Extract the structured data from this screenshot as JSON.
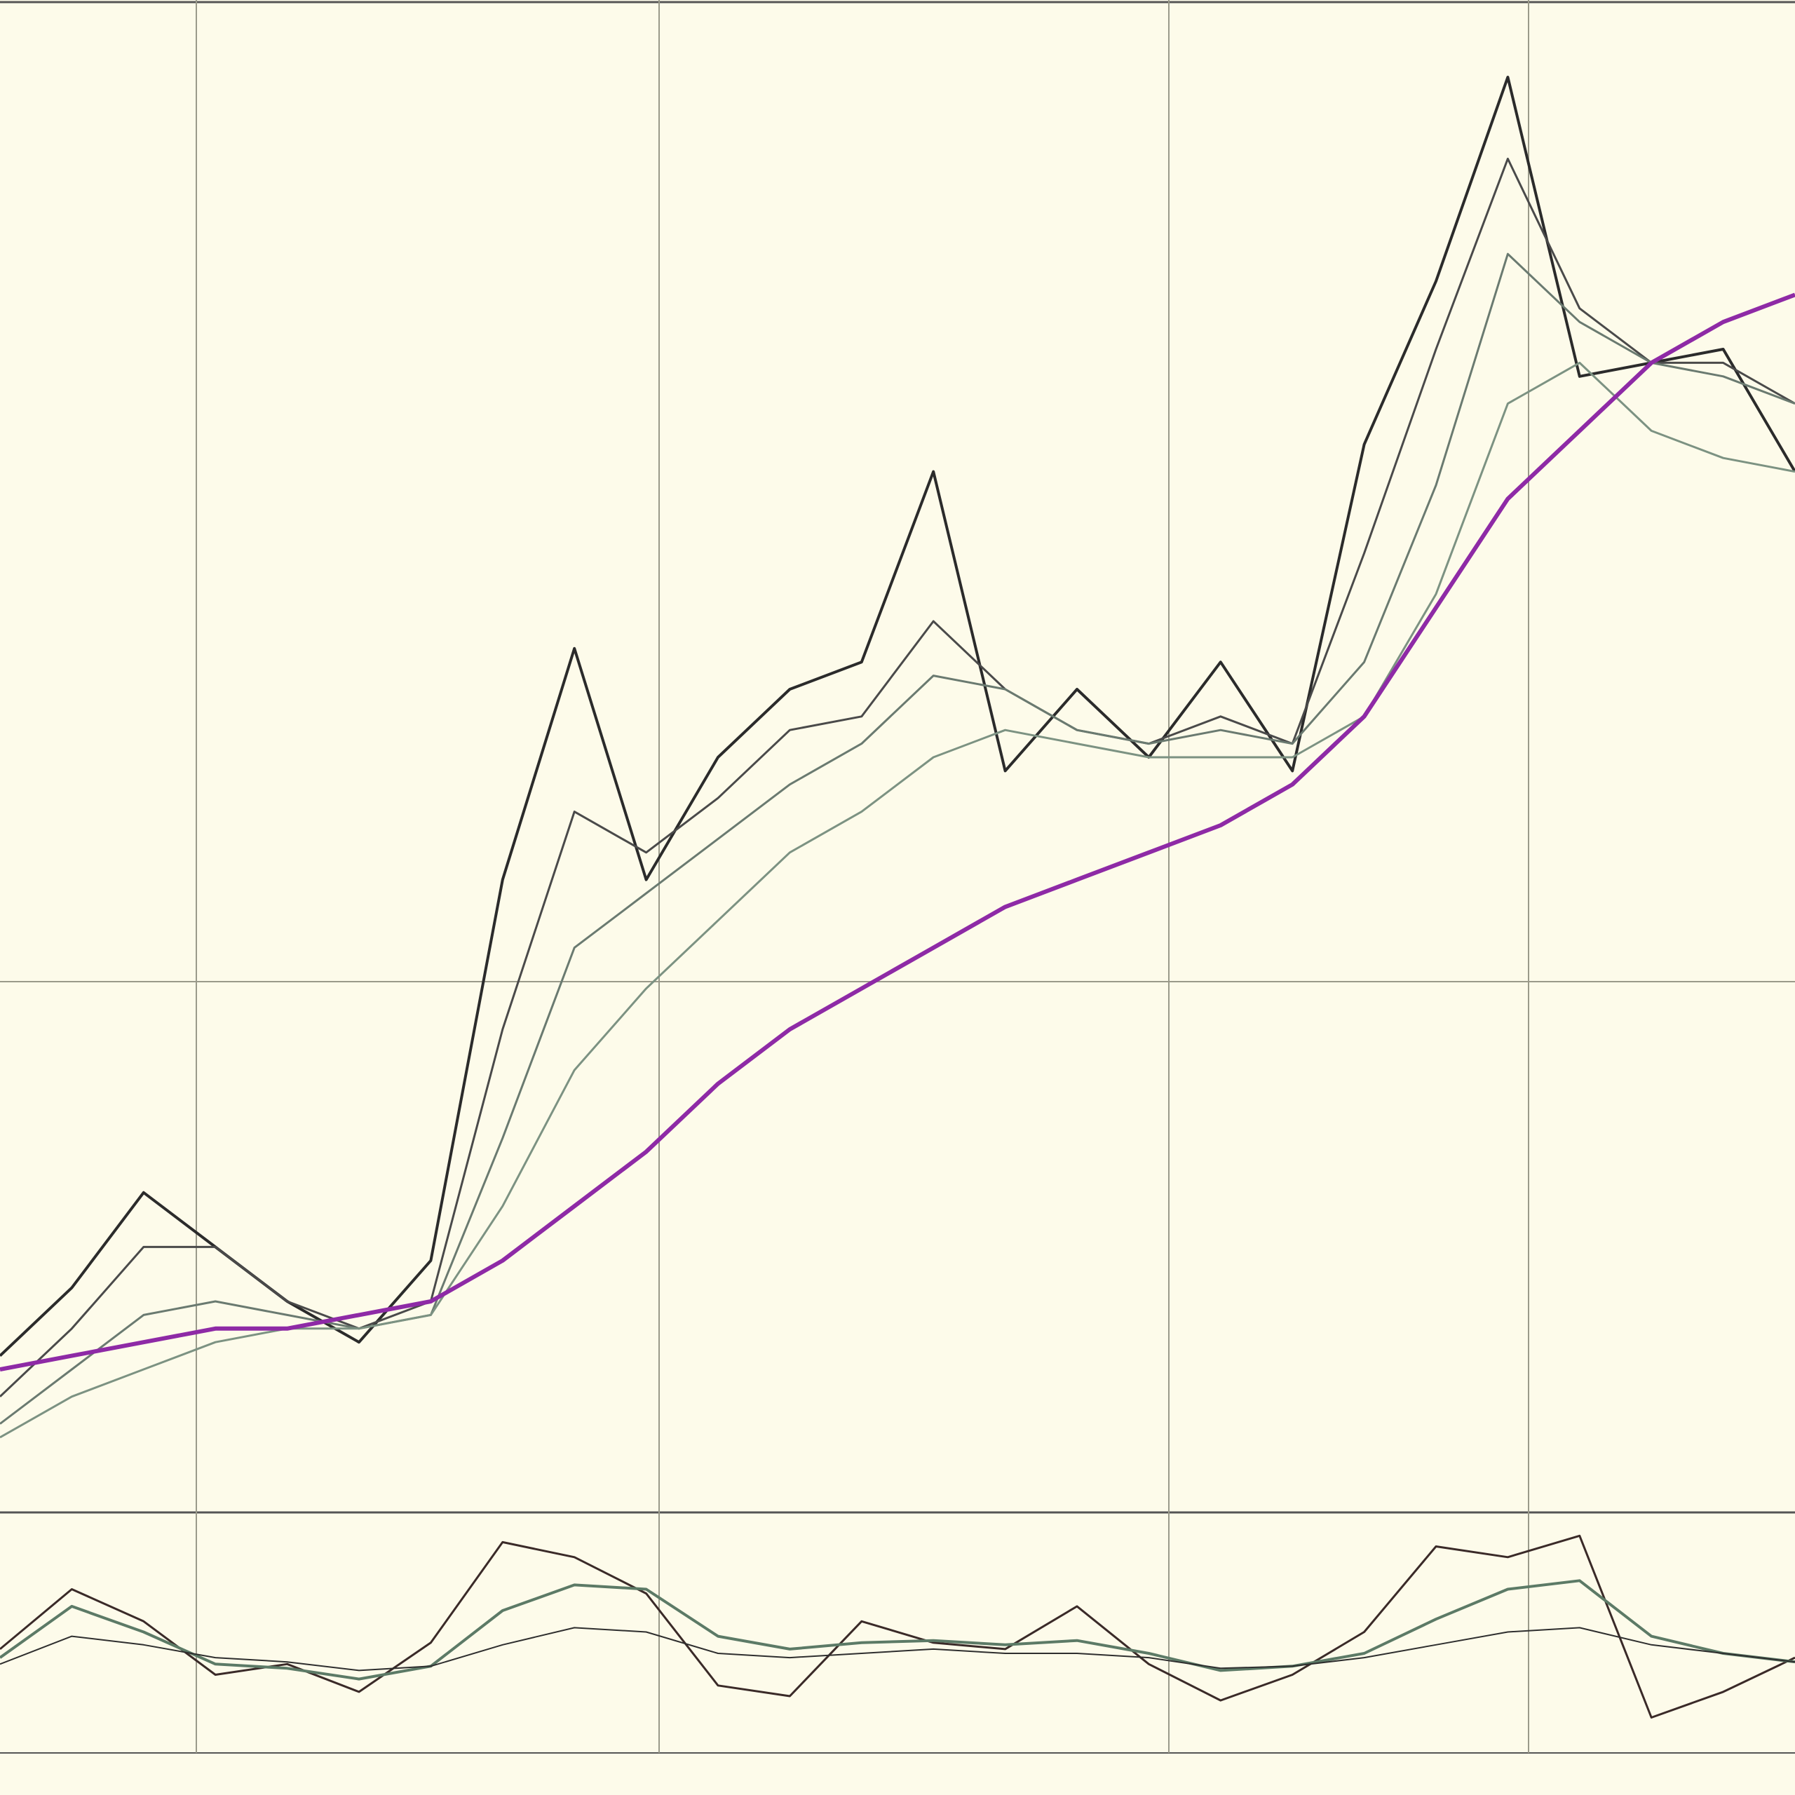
{
  "chart_data": {
    "type": "line",
    "title": "",
    "price_panel": {
      "header_label": "",
      "x": [
        0,
        4,
        8,
        12,
        16,
        20,
        24,
        28,
        32,
        36,
        40,
        44,
        48,
        52,
        56,
        60,
        64,
        68,
        72,
        76,
        80,
        84,
        88,
        92,
        96,
        100
      ],
      "series": [
        {
          "key": "price",
          "color": "#2b2b2b",
          "values": [
            0.06,
            0.11,
            0.18,
            0.14,
            0.1,
            0.07,
            0.13,
            0.41,
            0.58,
            0.41,
            0.5,
            0.55,
            0.57,
            0.71,
            0.49,
            0.55,
            0.5,
            0.57,
            0.49,
            0.73,
            0.85,
            1.0,
            0.78,
            0.79,
            0.8,
            0.71
          ]
        },
        {
          "key": "ma-fast",
          "color": "#4a4a4a",
          "values": [
            0.03,
            0.08,
            0.14,
            0.14,
            0.1,
            0.08,
            0.1,
            0.3,
            0.46,
            0.43,
            0.47,
            0.52,
            0.53,
            0.6,
            0.55,
            0.52,
            0.51,
            0.53,
            0.51,
            0.65,
            0.8,
            0.94,
            0.83,
            0.79,
            0.79,
            0.76
          ]
        },
        {
          "key": "ma-mid",
          "color": "#6a7a70",
          "values": [
            0.01,
            0.05,
            0.09,
            0.1,
            0.09,
            0.08,
            0.09,
            0.22,
            0.36,
            0.4,
            0.44,
            0.48,
            0.51,
            0.56,
            0.55,
            0.52,
            0.51,
            0.52,
            0.51,
            0.57,
            0.7,
            0.87,
            0.82,
            0.79,
            0.78,
            0.76
          ]
        },
        {
          "key": "ma-slow",
          "color": "#7c9282",
          "values": [
            0.0,
            0.03,
            0.05,
            0.07,
            0.08,
            0.08,
            0.09,
            0.17,
            0.27,
            0.33,
            0.38,
            0.43,
            0.46,
            0.5,
            0.52,
            0.51,
            0.5,
            0.5,
            0.5,
            0.53,
            0.62,
            0.76,
            0.79,
            0.74,
            0.72,
            0.71
          ]
        },
        {
          "key": "ma-long",
          "color": "#8e2aa6",
          "values": [
            0.05,
            0.06,
            0.07,
            0.08,
            0.08,
            0.09,
            0.1,
            0.13,
            0.17,
            0.21,
            0.26,
            0.3,
            0.33,
            0.36,
            0.39,
            0.41,
            0.43,
            0.45,
            0.48,
            0.53,
            0.61,
            0.69,
            0.74,
            0.79,
            0.82,
            0.84
          ]
        }
      ]
    },
    "indicator_panel": {
      "header_label": "",
      "x": [
        0,
        4,
        8,
        12,
        16,
        20,
        24,
        28,
        32,
        36,
        40,
        44,
        48,
        52,
        56,
        60,
        64,
        68,
        72,
        76,
        80,
        84,
        88,
        92,
        96,
        100
      ],
      "series": [
        {
          "key": "osc-fast",
          "color": "#3a2a28",
          "values": [
            0.42,
            0.7,
            0.55,
            0.3,
            0.35,
            0.22,
            0.45,
            0.92,
            0.85,
            0.68,
            0.25,
            0.2,
            0.55,
            0.45,
            0.42,
            0.62,
            0.35,
            0.18,
            0.3,
            0.5,
            0.9,
            0.85,
            0.95,
            0.1,
            0.22,
            0.38
          ]
        },
        {
          "key": "osc-slow",
          "color": "#5c7a66",
          "values": [
            0.38,
            0.62,
            0.5,
            0.35,
            0.33,
            0.28,
            0.34,
            0.6,
            0.72,
            0.7,
            0.48,
            0.42,
            0.45,
            0.46,
            0.44,
            0.46,
            0.4,
            0.32,
            0.34,
            0.4,
            0.56,
            0.7,
            0.74,
            0.48,
            0.4,
            0.36
          ]
        },
        {
          "key": "osc-signal",
          "color": "#2e2e2e",
          "values": [
            0.35,
            0.48,
            0.44,
            0.38,
            0.36,
            0.32,
            0.34,
            0.44,
            0.52,
            0.5,
            0.4,
            0.38,
            0.4,
            0.42,
            0.4,
            0.4,
            0.38,
            0.33,
            0.34,
            0.38,
            0.44,
            0.5,
            0.52,
            0.44,
            0.4,
            0.36
          ]
        }
      ]
    },
    "x_tick_labels": [
      "",
      "",
      "",
      "",
      "",
      "",
      "",
      "",
      "",
      ""
    ],
    "grid": true
  }
}
